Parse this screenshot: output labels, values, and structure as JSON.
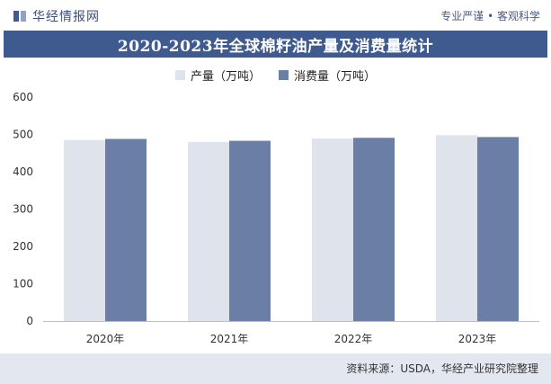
{
  "header": {
    "brand": "华经情报网",
    "tagline": "专业严谨 • 客观科学"
  },
  "colors": {
    "title_band": "#3e5a8e",
    "production": "#dee3ec",
    "consumption": "#6a7ea6",
    "footer_band": "#e3e7ef"
  },
  "chart_data": {
    "type": "bar",
    "title": "2020-2023年全球棉籽油产量及消费量统计",
    "categories": [
      "2020年",
      "2021年",
      "2022年",
      "2023年"
    ],
    "series": [
      {
        "name": "产量（万吨）",
        "values": [
          485,
          480,
          489,
          498
        ]
      },
      {
        "name": "消费量（万吨）",
        "values": [
          488,
          483,
          491,
          493
        ]
      }
    ],
    "ylim": [
      0,
      600
    ],
    "yticks": [
      0,
      100,
      200,
      300,
      400,
      500,
      600
    ],
    "grid": false,
    "legend_position": "top-center"
  },
  "footer": {
    "source": "资料来源：USDA，华经产业研究院整理"
  }
}
